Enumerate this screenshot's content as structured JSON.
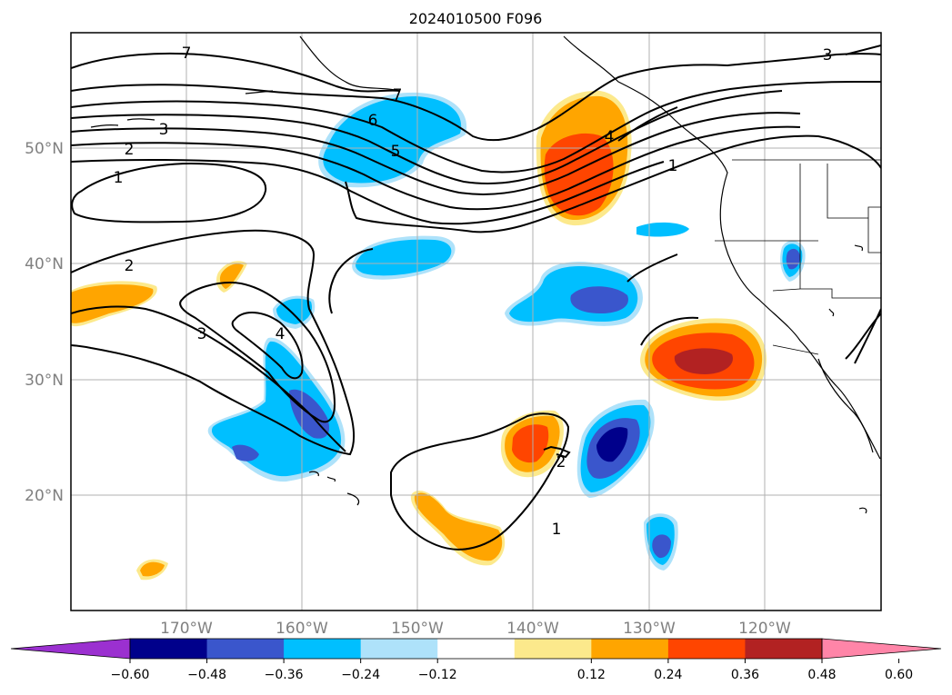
{
  "map": {
    "title": "2024010500 F096",
    "lat_labels": [
      "50°N",
      "40°N",
      "30°N",
      "20°N"
    ],
    "lon_labels": [
      "170°W",
      "160°W",
      "150°W",
      "140°W",
      "130°W",
      "120°W"
    ],
    "contour_labels": [
      "7",
      "7",
      "6",
      "5",
      "4",
      "3",
      "3",
      "2",
      "1",
      "1",
      "2",
      "3",
      "4",
      "2",
      "1"
    ]
  },
  "colorbar": {
    "ticks": [
      "−0.60",
      "−0.48",
      "−0.36",
      "−0.24",
      "−0.12",
      "0.12",
      "0.24",
      "0.36",
      "0.48",
      "0.60"
    ],
    "bins": [
      {
        "color": "#9b30d0"
      },
      {
        "color": "#00008b"
      },
      {
        "color": "#3a56cc"
      },
      {
        "color": "#00bfff"
      },
      {
        "color": "#aee2fa"
      },
      {
        "color": "#ffffff"
      },
      {
        "color": "#fce98c"
      },
      {
        "color": "#ffa500"
      },
      {
        "color": "#ff4500"
      },
      {
        "color": "#b22222"
      },
      {
        "color": "#ff85a8"
      }
    ]
  }
}
